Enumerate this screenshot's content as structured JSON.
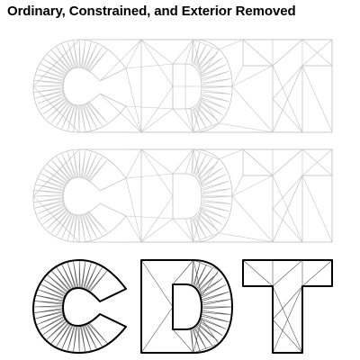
{
  "title": "Ordinary, Constrained, and Exterior Removed",
  "panels": [
    {
      "variant": "ordinary"
    },
    {
      "variant": "constrained"
    },
    {
      "variant": "exterior-removed"
    }
  ],
  "letters": [
    "C",
    "D",
    "T"
  ],
  "colors": {
    "mesh": "#c4c4c4",
    "outline": "#000000",
    "background": "#ffffff"
  }
}
